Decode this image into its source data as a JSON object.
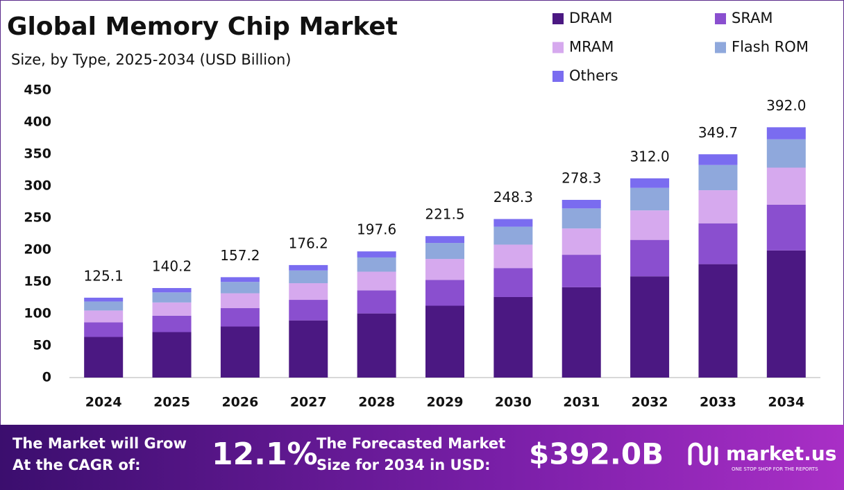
{
  "chart_data": {
    "type": "stacked-bar",
    "title": "Global Memory Chip Market",
    "subtitle": "Size, by Type, 2025-2034 (USD Billion)",
    "categories": [
      "2024",
      "2025",
      "2026",
      "2027",
      "2028",
      "2029",
      "2030",
      "2031",
      "2032",
      "2033",
      "2034"
    ],
    "series": [
      {
        "name": "DRAM",
        "color": "#4b1882",
        "values": [
          63.6,
          71.2,
          79.9,
          89.5,
          100.4,
          112.5,
          126.1,
          141.4,
          158.5,
          177.6,
          199.1
        ]
      },
      {
        "name": "SRAM",
        "color": "#8a4fcf",
        "values": [
          22.9,
          25.7,
          28.8,
          32.2,
          36.2,
          40.5,
          45.4,
          50.9,
          57.1,
          64.0,
          71.7
        ]
      },
      {
        "name": "MRAM",
        "color": "#d6a9ee",
        "values": [
          18.5,
          20.7,
          23.3,
          26.1,
          29.2,
          32.8,
          36.7,
          41.2,
          46.2,
          51.8,
          58.0
        ]
      },
      {
        "name": "Flash ROM",
        "color": "#8fa8dc",
        "values": [
          14.1,
          15.8,
          17.8,
          19.9,
          22.3,
          25.0,
          28.1,
          31.4,
          35.3,
          39.5,
          44.3
        ]
      },
      {
        "name": "Others",
        "color": "#7a6cf0",
        "values": [
          6.0,
          6.8,
          7.4,
          8.5,
          9.5,
          10.7,
          12.0,
          13.4,
          14.9,
          16.8,
          18.9
        ]
      }
    ],
    "totals": {
      "values": [
        125.1,
        140.2,
        157.2,
        176.2,
        197.6,
        221.5,
        248.3,
        278.3,
        312,
        349.7,
        392
      ],
      "value_labels": [
        "125.1",
        "140.2",
        "157.2",
        "176.2",
        "197.6",
        "221.5",
        "248.3",
        "278.3",
        "312.0",
        "349.7",
        "392.0"
      ]
    },
    "ylim": [
      0,
      450
    ],
    "yticks": [
      0,
      50,
      100,
      150,
      200,
      250,
      300,
      350,
      400,
      450
    ],
    "grid": false
  },
  "footer": {
    "cagr_text": [
      "The Market will Grow",
      "At the CAGR of:"
    ],
    "cagr_value": "12.1%",
    "forecast_text": [
      "The Forecasted Market",
      "Size for 2034 in USD:"
    ],
    "forecast_value": "$392.0B",
    "brand": "market.us",
    "tagline": "ONE STOP SHOP FOR THE REPORTS"
  }
}
